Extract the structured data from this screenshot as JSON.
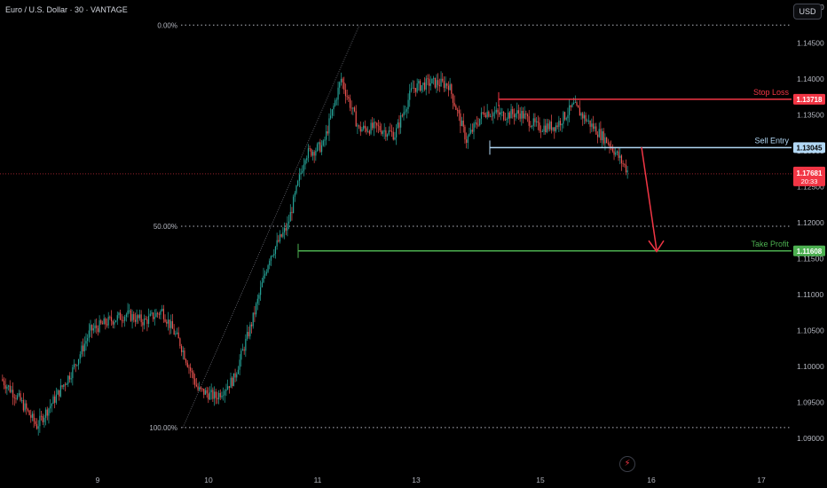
{
  "header": {
    "title": "Euro / U.S. Dollar · 30 · VANTAGE",
    "currency_button": "USD"
  },
  "colors": {
    "up": "#26a69a",
    "down": "#ef5350",
    "stop": "#f23645",
    "entry": "#b2d8f5",
    "take": "#4caf50",
    "bg": "#000000"
  },
  "icons": {
    "bottom": "lightning-icon"
  },
  "chart_data": {
    "type": "candlestick",
    "y_axis": {
      "ticks": [
        1.09,
        1.095,
        1.1,
        1.105,
        1.11,
        1.115,
        1.12,
        1.125,
        1.13,
        1.135,
        1.14,
        1.145,
        1.15
      ],
      "ylim": [
        1.0878,
        1.1535
      ],
      "position": "right"
    },
    "x_axis": {
      "ticks": [
        "9",
        "10",
        "11",
        "13",
        "15",
        "16",
        "17"
      ]
    },
    "fib_levels": [
      {
        "label": "0.00%",
        "price": 1.1475
      },
      {
        "label": "50.00%",
        "price": 1.1195
      },
      {
        "label": "100.00%",
        "price": 1.0915
      }
    ],
    "levels": [
      {
        "name": "Stop Loss",
        "price": 1.13718,
        "price_label": "1.13718"
      },
      {
        "name": "Sell Entry",
        "price": 1.13045,
        "price_label": "1.13045"
      },
      {
        "name": "Take Profit",
        "price": 1.11608,
        "price_label": "1.11608"
      }
    ],
    "current_price": {
      "value": 1.17681,
      "label": "1.17681",
      "countdown": "20:33"
    },
    "series_anchors": [
      [
        1.098,
        1.0985
      ],
      [
        1.0965,
        1.0945
      ],
      [
        1.093,
        1.0905
      ],
      [
        1.095,
        1.096
      ],
      [
        1.0985,
        1.1005
      ],
      [
        1.104,
        1.106
      ],
      [
        1.1075,
        1.105
      ],
      [
        1.106,
        1.1085
      ],
      [
        1.1065,
        1.106
      ],
      [
        1.109,
        1.1065
      ],
      [
        1.1045,
        1.102
      ],
      [
        1.099,
        1.0945
      ],
      [
        1.095,
        1.0965
      ],
      [
        1.0975,
        1.099
      ],
      [
        1.104,
        1.108
      ],
      [
        1.112,
        1.1185
      ],
      [
        1.1205,
        1.1185
      ],
      [
        1.125,
        1.134
      ],
      [
        1.1285,
        1.133
      ],
      [
        1.1375,
        1.1425
      ],
      [
        1.1365,
        1.1295
      ],
      [
        1.1315,
        1.135
      ],
      [
        1.134,
        1.1305
      ],
      [
        1.138,
        1.1395
      ],
      [
        1.141,
        1.138
      ],
      [
        1.14,
        1.1385
      ],
      [
        1.1325,
        1.1305
      ],
      [
        1.1345,
        1.1365
      ],
      [
        1.1355,
        1.1345
      ],
      [
        1.1365,
        1.134
      ],
      [
        1.133,
        1.1335
      ],
      [
        1.133,
        1.134
      ],
      [
        1.1365,
        1.136
      ],
      [
        1.134,
        1.133
      ],
      [
        1.132,
        1.13
      ],
      [
        1.1275,
        1.127
      ]
    ]
  }
}
